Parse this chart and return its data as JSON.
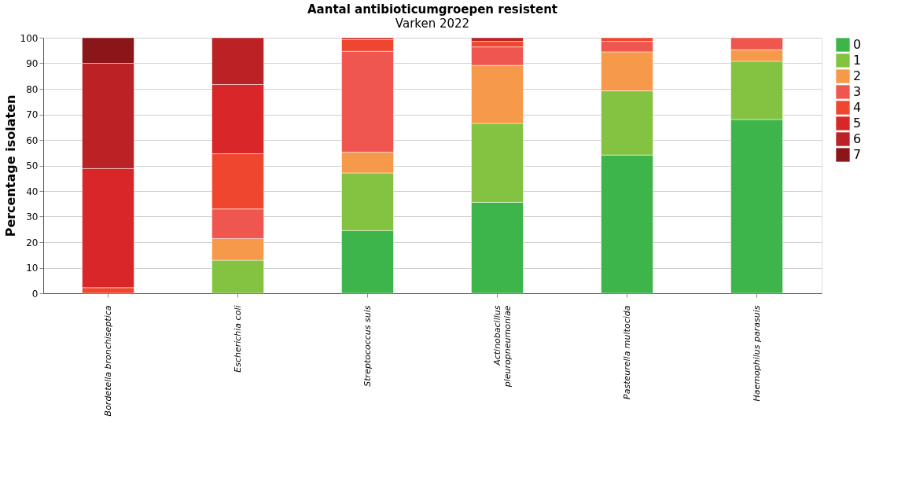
{
  "chart_data": {
    "type": "bar",
    "stacked": true,
    "title": "Aantal antibioticumgroepen resistent",
    "subtitle": "Varken 2022",
    "ylabel": "Percentage isolaten",
    "categories": [
      "Bordetella bronchiseptica",
      "Escherichia coli",
      "Streptococcus suis",
      "Actinobacillus\npleuropneumoniae",
      "Pasteurella multocida",
      "Haemophilus parasuis"
    ],
    "series": [
      {
        "name": "0",
        "color": "#3eb54a",
        "values": [
          null,
          null,
          24.5,
          35.6,
          54.1,
          68.0
        ]
      },
      {
        "name": "1",
        "color": "#84c341",
        "values": [
          null,
          12.9,
          22.6,
          30.9,
          25.1,
          22.8
        ]
      },
      {
        "name": "2",
        "color": "#f7994b",
        "values": [
          null,
          8.5,
          8.1,
          22.7,
          15.3,
          4.5
        ]
      },
      {
        "name": "3",
        "color": "#ef5650",
        "values": [
          null,
          11.6,
          39.5,
          7.2,
          4.1,
          4.7
        ]
      },
      {
        "name": "4",
        "color": "#ef462f",
        "values": [
          2.2,
          21.6,
          4.6,
          2.2,
          1.4,
          null
        ]
      },
      {
        "name": "5",
        "color": "#d92628",
        "values": [
          46.6,
          27.1,
          0.7,
          null,
          null,
          null
        ]
      },
      {
        "name": "6",
        "color": "#bb2226",
        "values": [
          41.2,
          18.3,
          null,
          1.4,
          null,
          null
        ]
      },
      {
        "name": "7",
        "color": "#8b161a",
        "values": [
          10.0,
          null,
          null,
          null,
          null,
          null
        ]
      }
    ],
    "ylim": [
      0,
      100
    ],
    "yticks": [
      0,
      10,
      20,
      30,
      40,
      50,
      60,
      70,
      80,
      90,
      100
    ],
    "grid": "y",
    "legend": "right"
  }
}
